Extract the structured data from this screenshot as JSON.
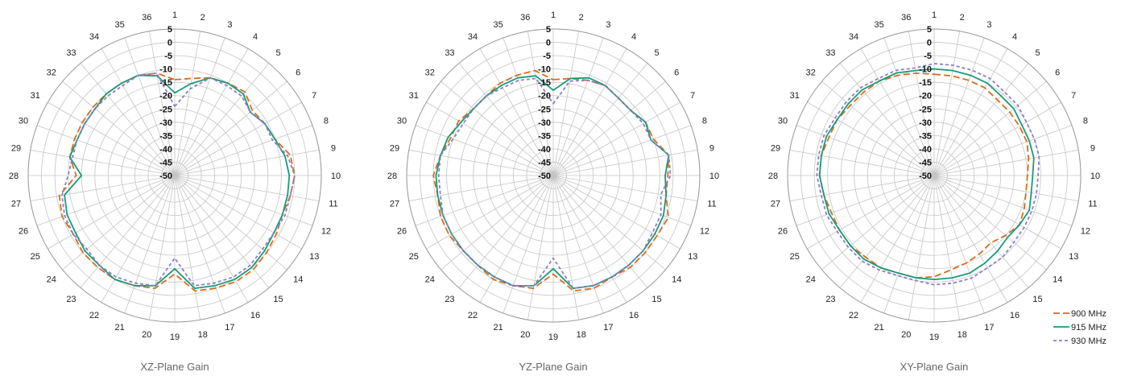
{
  "chart_data": [
    {
      "type": "polar-line",
      "caption": "XZ-Plane Gain",
      "angle_labels": [
        "1",
        "2",
        "3",
        "4",
        "5",
        "6",
        "7",
        "8",
        "9",
        "10",
        "11",
        "12",
        "13",
        "14",
        "15",
        "16",
        "17",
        "18",
        "19",
        "20",
        "21",
        "22",
        "23",
        "24",
        "25",
        "26",
        "27",
        "28",
        "29",
        "30",
        "31",
        "32",
        "33",
        "34",
        "35",
        "36"
      ],
      "radial_ticks": [
        "5",
        "0",
        "-5",
        "-10",
        "-15",
        "-20",
        "-25",
        "-30",
        "-35",
        "-40",
        "-45",
        "-50"
      ],
      "rlim": [
        -50,
        5
      ],
      "grid": true,
      "series": [
        {
          "name": "900 MHz",
          "color": "#d96c1e",
          "dash": "8,4",
          "values": [
            -14,
            -13,
            -11,
            -10,
            -9,
            -12,
            -11,
            -10,
            -6,
            -5,
            -6,
            -7,
            -6,
            -5,
            -4,
            -4,
            -5,
            -6,
            -13,
            -7,
            -6,
            -5,
            -5,
            -5,
            -6,
            -5,
            -6,
            -13,
            -10,
            -10,
            -10,
            -10,
            -10,
            -10,
            -10,
            -11
          ]
        },
        {
          "name": "915 MHz",
          "color": "#1a9a7a",
          "dash": "",
          "values": [
            -19,
            -15,
            -11,
            -10,
            -10,
            -13,
            -11,
            -10,
            -8,
            -7,
            -7,
            -7,
            -7,
            -6,
            -5,
            -5,
            -6,
            -7,
            -15,
            -8,
            -6,
            -5,
            -6,
            -6,
            -7,
            -7,
            -8,
            -15,
            -10,
            -11,
            -11,
            -11,
            -10,
            -10,
            -10,
            -12
          ]
        },
        {
          "name": "930 MHz",
          "color": "#8a7fc4",
          "dash": "4,3",
          "values": [
            -24,
            -17,
            -11,
            -11,
            -11,
            -13,
            -11,
            -11,
            -7,
            -5,
            -6,
            -6,
            -7,
            -7,
            -6,
            -6,
            -7,
            -8,
            -19,
            -8,
            -7,
            -6,
            -6,
            -7,
            -6,
            -6,
            -7,
            -10,
            -11,
            -11,
            -11,
            -11,
            -11,
            -11,
            -10,
            -11
          ]
        }
      ],
      "legend": false
    },
    {
      "type": "polar-line",
      "caption": "YZ-Plane Gain",
      "angle_labels": [
        "1",
        "2",
        "3",
        "4",
        "5",
        "6",
        "7",
        "8",
        "9",
        "10",
        "11",
        "12",
        "13",
        "14",
        "15",
        "16",
        "17",
        "18",
        "19",
        "20",
        "21",
        "22",
        "23",
        "24",
        "25",
        "26",
        "27",
        "28",
        "29",
        "30",
        "31",
        "32",
        "33",
        "34",
        "35",
        "36"
      ],
      "radial_ticks": [
        "5",
        "0",
        "-5",
        "-10",
        "-15",
        "-20",
        "-25",
        "-30",
        "-35",
        "-40",
        "-45",
        "-50"
      ],
      "rlim": [
        -50,
        5
      ],
      "grid": true,
      "series": [
        {
          "name": "900 MHz",
          "color": "#d96c1e",
          "dash": "8,4",
          "values": [
            -14,
            -13,
            -12,
            -11,
            -12,
            -12,
            -10,
            -10,
            -6,
            -7,
            -7,
            -4,
            -5,
            -5,
            -5,
            -6,
            -5,
            -6,
            -13,
            -7,
            -6,
            -5,
            -6,
            -6,
            -5,
            -5,
            -6,
            -5,
            -7,
            -9,
            -9,
            -11,
            -11,
            -10,
            -10,
            -10
          ]
        },
        {
          "name": "915 MHz",
          "color": "#1a9a7a",
          "dash": "",
          "values": [
            -18,
            -13,
            -11,
            -11,
            -12,
            -12,
            -10,
            -11,
            -6,
            -8,
            -7,
            -6,
            -6,
            -6,
            -6,
            -6,
            -6,
            -7,
            -15,
            -8,
            -6,
            -6,
            -6,
            -6,
            -6,
            -6,
            -6,
            -6,
            -7,
            -8,
            -10,
            -11,
            -11,
            -11,
            -11,
            -12
          ]
        },
        {
          "name": "930 MHz",
          "color": "#8a7fc4",
          "dash": "4,3",
          "values": [
            -23,
            -14,
            -12,
            -11,
            -12,
            -12,
            -11,
            -11,
            -6,
            -6,
            -9,
            -7,
            -7,
            -6,
            -6,
            -6,
            -6,
            -7,
            -19,
            -8,
            -6,
            -6,
            -6,
            -6,
            -6,
            -6,
            -7,
            -7,
            -7,
            -10,
            -11,
            -11,
            -11,
            -12,
            -12,
            -13
          ]
        }
      ],
      "legend": false
    },
    {
      "type": "polar-line",
      "caption": "XY-Plane Gain",
      "angle_labels": [
        "1",
        "2",
        "3",
        "4",
        "5",
        "6",
        "7",
        "8",
        "9",
        "10",
        "11",
        "12",
        "13",
        "14",
        "15",
        "16",
        "17",
        "18",
        "19",
        "20",
        "21",
        "22",
        "23",
        "24",
        "25",
        "26",
        "27",
        "28",
        "29",
        "30",
        "31",
        "32",
        "33",
        "34",
        "35",
        "36"
      ],
      "radial_ticks": [
        "5",
        "0",
        "-5",
        "-10",
        "-15",
        "-20",
        "-25",
        "-30",
        "-35",
        "-40",
        "-45",
        "-50"
      ],
      "rlim": [
        -50,
        5
      ],
      "grid": true,
      "series": [
        {
          "name": "900 MHz",
          "color": "#d96c1e",
          "dash": "8,4",
          "values": [
            -12,
            -12,
            -12,
            -12,
            -13,
            -13,
            -13,
            -13,
            -14,
            -15,
            -15,
            -14,
            -13,
            -15,
            -17,
            -16,
            -15,
            -14,
            -12,
            -11,
            -11,
            -10,
            -10,
            -9,
            -9,
            -9,
            -8,
            -7,
            -7,
            -8,
            -8,
            -9,
            -9,
            -9,
            -10,
            -11
          ]
        },
        {
          "name": "915 MHz",
          "color": "#1a9a7a",
          "dash": "",
          "values": [
            -10,
            -10,
            -10,
            -10,
            -11,
            -11,
            -12,
            -12,
            -12,
            -13,
            -13,
            -12,
            -13,
            -14,
            -13,
            -12,
            -11,
            -11,
            -11,
            -11,
            -11,
            -10,
            -9,
            -9,
            -9,
            -8,
            -8,
            -7,
            -7,
            -7,
            -8,
            -8,
            -8,
            -9,
            -9,
            -10
          ]
        },
        {
          "name": "930 MHz",
          "color": "#8a7fc4",
          "dash": "4,3",
          "values": [
            -8,
            -8,
            -8,
            -8,
            -9,
            -9,
            -10,
            -10,
            -10,
            -11,
            -11,
            -11,
            -11,
            -11,
            -10,
            -10,
            -9,
            -9,
            -9,
            -10,
            -10,
            -9,
            -8,
            -8,
            -8,
            -7,
            -7,
            -6,
            -6,
            -6,
            -7,
            -7,
            -7,
            -8,
            -8,
            -9
          ]
        }
      ],
      "legend": true,
      "legend_position": "bottom-right"
    }
  ]
}
